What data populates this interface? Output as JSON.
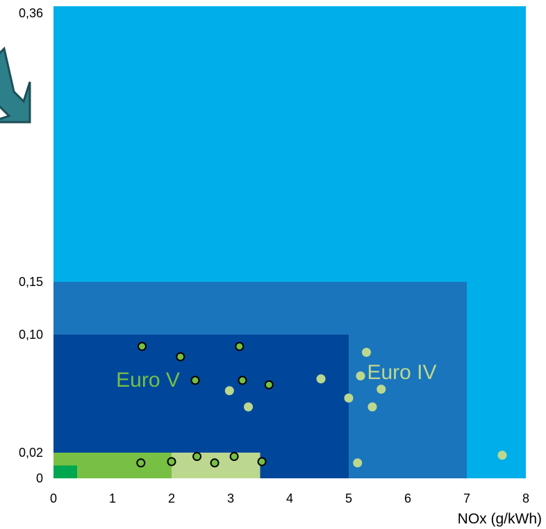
{
  "chart_data": {
    "type": "scatter",
    "title": "",
    "xlabel": "NOx (g/kWh)",
    "ylabel": "",
    "xlim": [
      0,
      8
    ],
    "x_ticks": [
      "0",
      "1",
      "2",
      "3",
      "4",
      "5",
      "6",
      "7",
      "8"
    ],
    "y_ticks": [
      {
        "value": 0,
        "label": "0"
      },
      {
        "value": 0.02,
        "label": "0,02"
      },
      {
        "value": 0.1,
        "label": "0,10"
      },
      {
        "value": 0.15,
        "label": "0,15"
      },
      {
        "value": 0.36,
        "label": "0,36"
      }
    ],
    "y_scale": "piecewise",
    "grid": false,
    "legend": "none",
    "regions": [
      {
        "name": "",
        "nox_max": 8.0,
        "pm_max": 0.36,
        "color": "#00aeea"
      },
      {
        "name": "",
        "nox_max": 7.0,
        "pm_max": 0.15,
        "color": "#1b75bc"
      },
      {
        "name": "",
        "nox_max": 5.0,
        "pm_max": 0.1,
        "color": "#00479b"
      },
      {
        "name": "",
        "nox_max": 3.5,
        "pm_max": 0.02,
        "color": "#bcd88e"
      },
      {
        "name": "",
        "nox_max": 2.0,
        "pm_max": 0.02,
        "color": "#77c043"
      },
      {
        "name": "",
        "nox_max": 0.4,
        "pm_max": 0.01,
        "color": "#00a650"
      }
    ],
    "annotations": [
      {
        "text": "Euro V",
        "x": 1.6,
        "y": 0.07,
        "color": "#77c043"
      },
      {
        "text": "Euro IV",
        "x": 5.9,
        "y": 0.075,
        "color": "#bcd88e"
      }
    ],
    "series": [
      {
        "marker": "dark-green circle with black outline",
        "color": "#77c043",
        "points": [
          {
            "x": 1.5,
            "y": 0.092
          },
          {
            "x": 3.15,
            "y": 0.092
          },
          {
            "x": 2.15,
            "y": 0.085
          },
          {
            "x": 2.4,
            "y": 0.069
          },
          {
            "x": 3.2,
            "y": 0.069
          },
          {
            "x": 3.65,
            "y": 0.066
          },
          {
            "x": 1.48,
            "y": 0.012
          },
          {
            "x": 2.0,
            "y": 0.013
          },
          {
            "x": 2.43,
            "y": 0.017
          },
          {
            "x": 2.73,
            "y": 0.012
          },
          {
            "x": 3.06,
            "y": 0.017
          },
          {
            "x": 3.53,
            "y": 0.013
          }
        ]
      },
      {
        "marker": "light green circle",
        "color": "#bcd88e",
        "points": [
          {
            "x": 4.53,
            "y": 0.07
          },
          {
            "x": 5.3,
            "y": 0.088
          },
          {
            "x": 5.2,
            "y": 0.072
          },
          {
            "x": 5.55,
            "y": 0.063
          },
          {
            "x": 2.98,
            "y": 0.062
          },
          {
            "x": 5.0,
            "y": 0.057
          },
          {
            "x": 3.3,
            "y": 0.051
          },
          {
            "x": 5.4,
            "y": 0.051
          },
          {
            "x": 5.15,
            "y": 0.012
          },
          {
            "x": 7.6,
            "y": 0.018
          }
        ]
      }
    ]
  },
  "decor": {
    "arrow_icon": "down-right-arrow-icon",
    "arrow_color": "#2d7f8a"
  }
}
